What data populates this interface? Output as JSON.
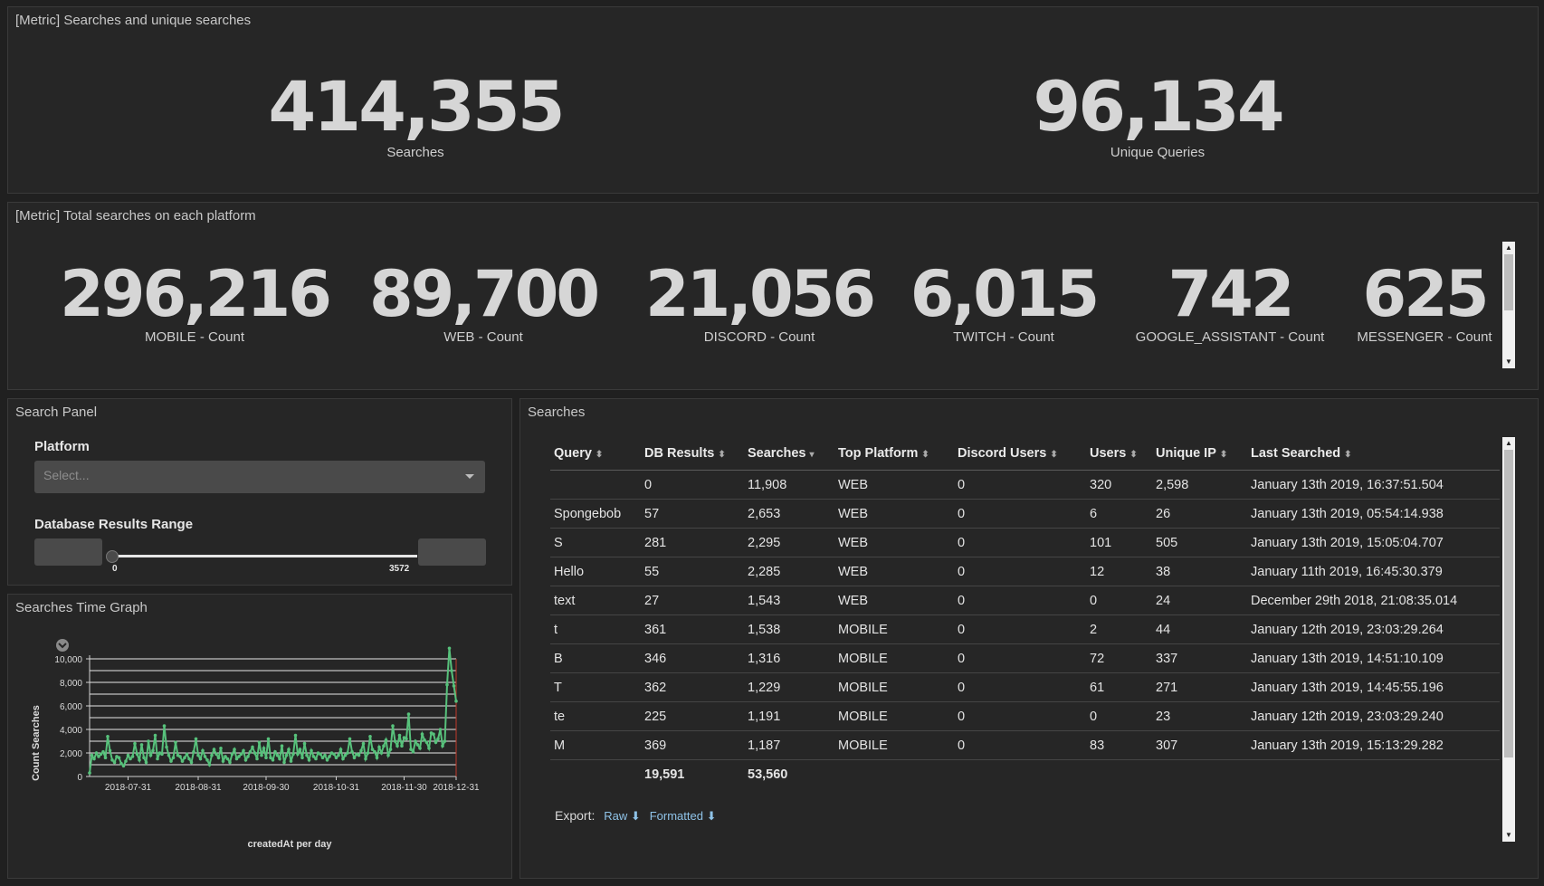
{
  "top_metrics": {
    "title": "[Metric] Searches and unique searches",
    "items": [
      {
        "value": "414,355",
        "label": "Searches"
      },
      {
        "value": "96,134",
        "label": "Unique Queries"
      }
    ]
  },
  "platform_metrics": {
    "title": "[Metric] Total searches on each platform",
    "items": [
      {
        "value": "296,216",
        "label": "MOBILE - Count"
      },
      {
        "value": "89,700",
        "label": "WEB - Count"
      },
      {
        "value": "21,056",
        "label": "DISCORD - Count"
      },
      {
        "value": "6,015",
        "label": "TWITCH - Count"
      },
      {
        "value": "742",
        "label": "GOOGLE_ASSISTANT - Count"
      },
      {
        "value": "625",
        "label": "MESSENGER - Count"
      }
    ]
  },
  "search_panel": {
    "title": "Search Panel",
    "platform_label": "Platform",
    "platform_placeholder": "Select...",
    "range_label": "Database Results Range",
    "range_min": "0",
    "range_max": "3572"
  },
  "time_graph": {
    "title": "Searches Time Graph"
  },
  "chart_data": {
    "type": "line",
    "xlabel": "createdAt per day",
    "ylabel": "Count Searches",
    "ylim": [
      0,
      10000
    ],
    "y_ticks": [
      "0",
      "2,000",
      "4,000",
      "6,000",
      "8,000",
      "10,000"
    ],
    "x_ticks": [
      "2018-07-31",
      "2018-08-31",
      "2018-09-30",
      "2018-10-31",
      "2018-11-30",
      "2018-12-31"
    ],
    "color": "#57c17b",
    "series": [
      {
        "values": [
          300,
          1800,
          1500,
          2000,
          1700,
          1900,
          2100,
          1600,
          3400,
          2200,
          1400,
          1200,
          1700,
          1600,
          1100,
          900,
          1300,
          1800,
          1500,
          1700,
          2800,
          1900,
          1400,
          2700,
          1600,
          1200,
          3000,
          1800,
          2200,
          3500,
          1500,
          2000,
          1900,
          4300,
          2500,
          1800,
          1300,
          1600,
          2900,
          1800,
          1700,
          1300,
          1600,
          1900,
          1500,
          1200,
          2100,
          3200,
          1800,
          1500,
          2200,
          1700,
          1400,
          1000,
          1800,
          2300,
          1900,
          1600,
          2400,
          1300,
          1700,
          1500,
          1200,
          1900,
          2300,
          1500,
          1700,
          1900,
          2200,
          1400,
          1700,
          2100,
          2500,
          2000,
          1500,
          2900,
          1800,
          2400,
          1600,
          3200,
          1600,
          1400,
          2100,
          1800,
          1500,
          2600,
          1200,
          1800,
          2300,
          1300,
          1900,
          3500,
          1900,
          2300,
          1600,
          2800,
          1800,
          1400,
          2200,
          1700,
          1500,
          2000,
          1900,
          1600,
          1800,
          1400,
          1700,
          2000,
          1900,
          1600,
          1800,
          2300,
          1500,
          1800,
          2000,
          3200,
          2100,
          1600,
          1900,
          1800,
          2200,
          2800,
          1500,
          2000,
          3400,
          2300,
          2100,
          1600,
          2500,
          2000,
          2600,
          3100,
          1800,
          2300,
          4300,
          3000,
          2600,
          3500,
          2600,
          3300,
          3200,
          5300,
          2300,
          2100,
          3000,
          2700,
          2400,
          3600,
          3100,
          2900,
          2400,
          3700,
          3600,
          2900,
          3200,
          4000,
          2600,
          3000,
          7800,
          10900,
          9000,
          7700,
          6400
        ]
      }
    ]
  },
  "searches_table": {
    "title": "Searches",
    "columns": [
      "Query",
      "DB Results",
      "Searches",
      "Top Platform",
      "Discord Users",
      "Users",
      "Unique IP",
      "Last Searched"
    ],
    "rows": [
      [
        "",
        "0",
        "11,908",
        "WEB",
        "0",
        "320",
        "2,598",
        "January 13th 2019, 16:37:51.504"
      ],
      [
        "Spongebob",
        "57",
        "2,653",
        "WEB",
        "0",
        "6",
        "26",
        "January 13th 2019, 05:54:14.938"
      ],
      [
        "S",
        "281",
        "2,295",
        "WEB",
        "0",
        "101",
        "505",
        "January 13th 2019, 15:05:04.707"
      ],
      [
        "Hello",
        "55",
        "2,285",
        "WEB",
        "0",
        "12",
        "38",
        "January 11th 2019, 16:45:30.379"
      ],
      [
        "text",
        "27",
        "1,543",
        "WEB",
        "0",
        "0",
        "24",
        "December 29th 2018, 21:08:35.014"
      ],
      [
        "t",
        "361",
        "1,538",
        "MOBILE",
        "0",
        "2",
        "44",
        "January 12th 2019, 23:03:29.264"
      ],
      [
        "B",
        "346",
        "1,316",
        "MOBILE",
        "0",
        "72",
        "337",
        "January 13th 2019, 14:51:10.109"
      ],
      [
        "T",
        "362",
        "1,229",
        "MOBILE",
        "0",
        "61",
        "271",
        "January 13th 2019, 14:45:55.196"
      ],
      [
        "te",
        "225",
        "1,191",
        "MOBILE",
        "0",
        "0",
        "23",
        "January 12th 2019, 23:03:29.240"
      ],
      [
        "M",
        "369",
        "1,187",
        "MOBILE",
        "0",
        "83",
        "307",
        "January 13th 2019, 15:13:29.282"
      ]
    ],
    "totals": [
      "",
      "19,591",
      "53,560",
      "",
      "",
      "",
      "",
      ""
    ],
    "export_label": "Export:",
    "export_raw": "Raw",
    "export_formatted": "Formatted"
  }
}
